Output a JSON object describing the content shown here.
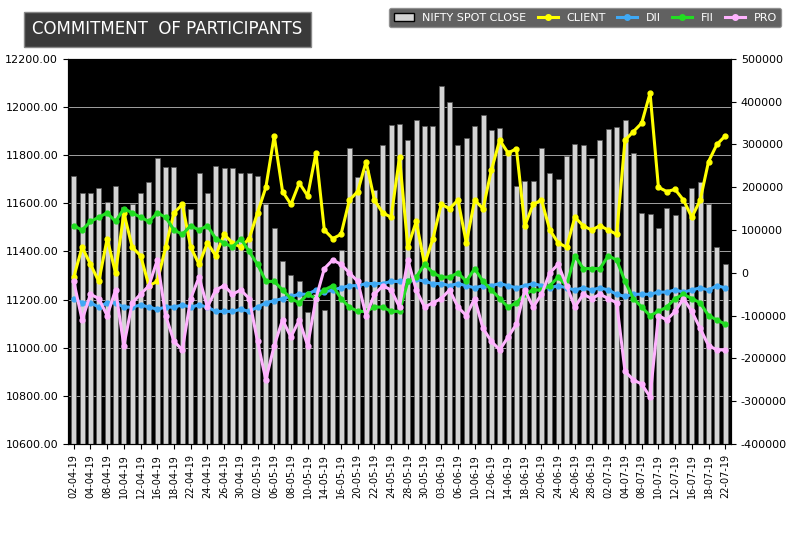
{
  "chart_data": {
    "type": "bar",
    "title": "COMMITMENT  OF PARTICIPANTS",
    "categories": [
      "02-04-19",
      null,
      "04-04-19",
      null,
      "08-04-19",
      null,
      "10-04-19",
      null,
      "12-04-19",
      null,
      "16-04-19",
      null,
      "18-04-19",
      null,
      "22-04-19",
      null,
      "24-04-19",
      null,
      "26-04-19",
      null,
      "30-04-19",
      null,
      "02-05-19",
      null,
      "06-05-19",
      null,
      "08-05-19",
      null,
      "10-05-19",
      null,
      "14-05-19",
      null,
      "16-05-19",
      null,
      "20-05-19",
      null,
      "22-05-19",
      null,
      "24-05-19",
      null,
      "28-05-19",
      null,
      "30-05-19",
      null,
      "03-06-19",
      null,
      "06-06-19",
      null,
      "10-06-19",
      null,
      "12-06-19",
      null,
      "14-06-19",
      null,
      "18-06-19",
      null,
      "20-06-19",
      null,
      "24-06-19",
      null,
      "26-06-19",
      null,
      "28-06-19",
      null,
      "02-07-19",
      null,
      "04-07-19",
      null,
      "08-07-19",
      null,
      "10-07-19",
      null,
      "12-07-19",
      null,
      "16-07-19",
      null,
      "18-07-19",
      null,
      "22-07-19"
    ],
    "series": [
      {
        "name": "NIFTY SPOT CLOSE",
        "type": "bar",
        "color": "#d4d4d4",
        "values": [
          11715,
          11643,
          11643,
          11665,
          11605,
          11671,
          11584,
          11596,
          11643,
          11690,
          11787,
          11752,
          11752,
          11594,
          11575,
          11726,
          11641,
          11755,
          11748,
          11748,
          11725,
          11725,
          11712,
          11599,
          11498,
          11359,
          11302,
          11279,
          11148,
          11222,
          11157,
          11257,
          11407,
          11828,
          11709,
          11738,
          11657,
          11844,
          11925,
          11928,
          11861,
          11945,
          11922,
          11922,
          12088,
          12021,
          11843,
          11870,
          11922,
          11965,
          11906,
          11914,
          11823,
          11672,
          11691,
          11691,
          11831,
          11724,
          11699,
          11796,
          11847,
          11842,
          11789,
          11865,
          11910,
          11916,
          11946,
          11811,
          11558,
          11555,
          11498,
          11582,
          11552,
          11588,
          11663,
          11687,
          11597,
          11419,
          11346
        ]
      },
      {
        "name": "CLIENT",
        "type": "line",
        "axis": "y2",
        "color": "#ffff00",
        "marker": "o",
        "values": [
          -10000,
          60000,
          20000,
          -20000,
          80000,
          0,
          140000,
          60000,
          40000,
          -30000,
          -20000,
          60000,
          140000,
          160000,
          60000,
          20000,
          70000,
          40000,
          90000,
          70000,
          60000,
          80000,
          140000,
          200000,
          320000,
          190000,
          160000,
          210000,
          180000,
          280000,
          100000,
          80000,
          90000,
          170000,
          190000,
          260000,
          170000,
          140000,
          130000,
          270000,
          60000,
          120000,
          20000,
          80000,
          160000,
          150000,
          170000,
          70000,
          170000,
          150000,
          240000,
          310000,
          280000,
          290000,
          110000,
          160000,
          170000,
          100000,
          70000,
          60000,
          130000,
          110000,
          100000,
          110000,
          100000,
          90000,
          310000,
          330000,
          350000,
          420000,
          200000,
          190000,
          195000,
          170000,
          130000,
          170000,
          260000,
          300000,
          320000
        ]
      },
      {
        "name": "DII",
        "type": "line",
        "axis": "y2",
        "color": "#3fa9f5",
        "marker": "o",
        "values": [
          -60000,
          -70000,
          -70000,
          -80000,
          -70000,
          -70000,
          -80000,
          -80000,
          -75000,
          -80000,
          -85000,
          -80000,
          -80000,
          -75000,
          -80000,
          -75000,
          -80000,
          -90000,
          -90000,
          -90000,
          -85000,
          -90000,
          -80000,
          -70000,
          -65000,
          -60000,
          -55000,
          -50000,
          -50000,
          -40000,
          -45000,
          -40000,
          -35000,
          -30000,
          -30000,
          -25000,
          -25000,
          -25000,
          -20000,
          -20000,
          -20000,
          -15000,
          -20000,
          -25000,
          -25000,
          -30000,
          -25000,
          -30000,
          -35000,
          -30000,
          -30000,
          -25000,
          -30000,
          -35000,
          -30000,
          -25000,
          -30000,
          -35000,
          -30000,
          -35000,
          -40000,
          -35000,
          -40000,
          -35000,
          -40000,
          -50000,
          -55000,
          -50000,
          -50000,
          -50000,
          -45000,
          -45000,
          -40000,
          -45000,
          -40000,
          -35000,
          -40000,
          -30000,
          -35000
        ]
      },
      {
        "name": "FII",
        "type": "line",
        "axis": "y2",
        "color": "#22dd22",
        "marker": "o",
        "values": [
          110000,
          100000,
          120000,
          130000,
          140000,
          120000,
          150000,
          140000,
          130000,
          120000,
          140000,
          130000,
          100000,
          90000,
          110000,
          100000,
          110000,
          80000,
          70000,
          60000,
          80000,
          50000,
          20000,
          -20000,
          -20000,
          -40000,
          -60000,
          -70000,
          -50000,
          -60000,
          -40000,
          -30000,
          -60000,
          -80000,
          -90000,
          -90000,
          -80000,
          -80000,
          -90000,
          -90000,
          -20000,
          -10000,
          20000,
          0,
          -10000,
          -10000,
          0,
          -20000,
          10000,
          -20000,
          -40000,
          -60000,
          -80000,
          -70000,
          -50000,
          -40000,
          -40000,
          -30000,
          -10000,
          -30000,
          40000,
          10000,
          10000,
          10000,
          40000,
          30000,
          -20000,
          -60000,
          -80000,
          -100000,
          -90000,
          -80000,
          -60000,
          -50000,
          -60000,
          -70000,
          -100000,
          -110000,
          -120000
        ]
      },
      {
        "name": "PRO",
        "type": "line",
        "axis": "y2",
        "color": "#ffb3ff",
        "marker": "o",
        "values": [
          -20000,
          -110000,
          -50000,
          -60000,
          -100000,
          -40000,
          -170000,
          -70000,
          -50000,
          -30000,
          30000,
          -100000,
          -160000,
          -180000,
          -60000,
          -10000,
          -80000,
          -40000,
          -30000,
          -50000,
          -40000,
          -60000,
          -160000,
          -250000,
          -170000,
          -110000,
          -150000,
          -110000,
          -170000,
          -60000,
          10000,
          30000,
          20000,
          0,
          -20000,
          -100000,
          -50000,
          -30000,
          -40000,
          -80000,
          30000,
          -40000,
          -80000,
          -70000,
          -60000,
          -40000,
          -80000,
          -100000,
          -60000,
          -130000,
          -160000,
          -180000,
          -150000,
          -120000,
          -40000,
          -80000,
          -50000,
          0,
          20000,
          -30000,
          -80000,
          -50000,
          -60000,
          -50000,
          -60000,
          -70000,
          -230000,
          -250000,
          -260000,
          -290000,
          -100000,
          -110000,
          -90000,
          -60000,
          -90000,
          -130000,
          -170000,
          -180000,
          -180000
        ]
      }
    ],
    "ylim": [
      10600,
      12200
    ],
    "yticks": [
      {
        "value": 10600,
        "label": "10600.00"
      },
      {
        "value": 10800,
        "label": "10800.00"
      },
      {
        "value": 11000,
        "label": "11000.00"
      },
      {
        "value": 11200,
        "label": "11200.00"
      },
      {
        "value": 11400,
        "label": "11400.00"
      },
      {
        "value": 11600,
        "label": "11600.00"
      },
      {
        "value": 11800,
        "label": "11800.00"
      },
      {
        "value": 12000,
        "label": "12000.00"
      },
      {
        "value": 12200,
        "label": "12200.00"
      }
    ],
    "y2lim": [
      -400000,
      500000
    ],
    "y2ticks": [
      -400000,
      -300000,
      -200000,
      -100000,
      0,
      100000,
      200000,
      300000,
      400000,
      500000
    ],
    "grid": true,
    "legend": "upper right"
  }
}
